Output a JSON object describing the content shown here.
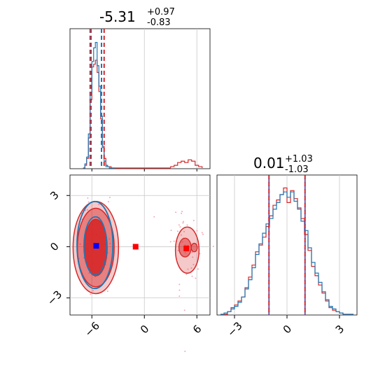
{
  "chart_data": {
    "type": "corner",
    "parameters": [
      {
        "title_value": "-5.31",
        "title_plus": "+0.97",
        "title_minus": "-0.83"
      },
      {
        "title_value": "0.01",
        "title_plus": "+1.03",
        "title_minus": "-1.03"
      }
    ],
    "panels": {
      "p0_hist": {
        "xlim": [
          -8.5,
          7.5
        ],
        "quantiles_blue": [
          -6.2,
          -4.9
        ],
        "quantiles_red": [
          -6.1,
          -4.6
        ],
        "grid_x": [
          0,
          6
        ]
      },
      "p1_hist": {
        "xlim": [
          -4.0,
          4.0
        ],
        "quantiles": [
          -1.03,
          1.03
        ],
        "grid_x": [
          -3,
          0,
          3
        ]
      },
      "p01_2d": {
        "xlim": [
          -8.5,
          7.5
        ],
        "ylim": [
          -4,
          4.2
        ],
        "xticks": [
          -6,
          0,
          6
        ],
        "xtick_labels": [
          "−6",
          "0",
          "6"
        ],
        "yticks": [
          -3,
          0,
          3
        ],
        "ytick_labels": [
          "−3",
          "0",
          "3"
        ],
        "markers": [
          {
            "x": -5.5,
            "y": 0.05,
            "color": "#0000ff"
          },
          {
            "x": -1.0,
            "y": 0.0,
            "color": "#ff0000"
          },
          {
            "x": 4.8,
            "y": -0.1,
            "color": "#ff0000"
          }
        ]
      },
      "p1_xaxis": {
        "xticks": [
          -3,
          0,
          3
        ],
        "xtick_labels": [
          "−3",
          "0",
          "3"
        ]
      }
    },
    "series": [
      {
        "color": "#1f77b4"
      },
      {
        "color": "#d62728"
      }
    ],
    "hist_p0": {
      "bin_edges": [
        -7.0,
        -6.8,
        -6.6,
        -6.4,
        -6.2,
        -6.0,
        -5.8,
        -5.6,
        -5.4,
        -5.2,
        -5.0,
        -4.8,
        -4.6,
        -4.4,
        -4.2,
        -4.0,
        -3.8,
        -3.6,
        -3.4
      ],
      "blue": [
        0,
        0.03,
        0.08,
        0.25,
        0.55,
        0.78,
        0.88,
        0.92,
        0.75,
        0.6,
        0.38,
        0.15,
        0.05,
        0.01,
        0.01,
        0,
        0,
        0
      ],
      "red_left": [
        0,
        0.02,
        0.07,
        0.22,
        0.5,
        0.74,
        0.76,
        0.79,
        0.7,
        0.56,
        0.36,
        0.16,
        0.07,
        0.02,
        0.01,
        0.01,
        0,
        0
      ],
      "red_right_edges": [
        3.0,
        3.4,
        3.8,
        4.2,
        4.6,
        5.0,
        5.4,
        5.8,
        6.2,
        6.6
      ],
      "red_right": [
        0.01,
        0.02,
        0.04,
        0.05,
        0.04,
        0.06,
        0.05,
        0.02,
        0.01
      ]
    },
    "hist_p1": {
      "bin_edges": [
        -3.8,
        -3.6,
        -3.4,
        -3.2,
        -3.0,
        -2.8,
        -2.6,
        -2.4,
        -2.2,
        -2.0,
        -1.8,
        -1.6,
        -1.4,
        -1.2,
        -1.0,
        -0.8,
        -0.6,
        -0.4,
        -0.2,
        0.0,
        0.2,
        0.4,
        0.6,
        0.8,
        1.0,
        1.2,
        1.4,
        1.6,
        1.8,
        2.0,
        2.2,
        2.4,
        2.6,
        2.8,
        3.0,
        3.2,
        3.4,
        3.6,
        3.8
      ],
      "blue": [
        0.0,
        0.01,
        0.02,
        0.04,
        0.06,
        0.09,
        0.13,
        0.19,
        0.26,
        0.35,
        0.45,
        0.53,
        0.61,
        0.68,
        0.72,
        0.79,
        0.84,
        0.9,
        0.92,
        0.88,
        0.92,
        0.85,
        0.79,
        0.7,
        0.63,
        0.5,
        0.39,
        0.31,
        0.24,
        0.17,
        0.11,
        0.06,
        0.04,
        0.02,
        0.01,
        0.0,
        0.0,
        0.0
      ],
      "red": [
        0.0,
        0.0,
        0.02,
        0.05,
        0.07,
        0.1,
        0.13,
        0.2,
        0.28,
        0.37,
        0.47,
        0.52,
        0.58,
        0.66,
        0.74,
        0.82,
        0.86,
        0.9,
        0.95,
        0.84,
        0.93,
        0.87,
        0.8,
        0.72,
        0.6,
        0.48,
        0.36,
        0.29,
        0.22,
        0.16,
        0.1,
        0.05,
        0.03,
        0.02,
        0.01,
        0.0,
        0.0,
        0.0
      ]
    }
  }
}
